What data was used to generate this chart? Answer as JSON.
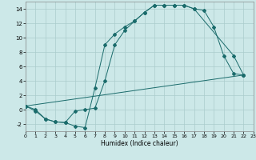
{
  "xlabel": "Humidex (Indice chaleur)",
  "bg_color": "#cce8e8",
  "grid_color": "#aacccc",
  "line_color": "#1a6b6b",
  "ylim": [
    -3,
    15
  ],
  "xlim": [
    0,
    23
  ],
  "yticks": [
    -2,
    0,
    2,
    4,
    6,
    8,
    10,
    12,
    14
  ],
  "xticks": [
    0,
    1,
    2,
    3,
    4,
    5,
    6,
    7,
    8,
    9,
    10,
    11,
    12,
    13,
    14,
    15,
    16,
    17,
    18,
    19,
    20,
    21,
    22,
    23
  ],
  "line1_x": [
    0,
    1,
    2,
    3,
    4,
    5,
    6,
    7,
    8,
    9,
    10,
    11,
    12,
    13,
    14,
    15,
    16,
    17,
    21,
    22
  ],
  "line1_y": [
    0.5,
    -0.2,
    -1.3,
    -1.7,
    -1.8,
    -2.3,
    -2.5,
    3.0,
    9.0,
    10.5,
    11.5,
    12.3,
    13.5,
    14.5,
    14.5,
    14.5,
    14.5,
    14.0,
    7.5,
    4.8
  ],
  "line2_x": [
    0,
    1,
    2,
    3,
    4,
    5,
    6,
    7,
    8,
    9,
    10,
    11,
    12,
    13,
    14,
    15,
    16,
    17,
    18,
    19,
    20,
    21,
    22
  ],
  "line2_y": [
    0.5,
    0.0,
    -1.3,
    -1.7,
    -1.8,
    -0.2,
    0.0,
    0.2,
    4.0,
    9.0,
    11.0,
    12.3,
    13.5,
    14.5,
    14.5,
    14.5,
    14.5,
    14.0,
    13.8,
    11.5,
    7.5,
    5.0,
    4.8
  ],
  "line3_x": [
    0,
    22
  ],
  "line3_y": [
    0.5,
    4.8
  ],
  "xlabel_fontsize": 5.5,
  "tick_fontsize": 4.5,
  "marker_size": 2.0,
  "line_width": 0.7
}
